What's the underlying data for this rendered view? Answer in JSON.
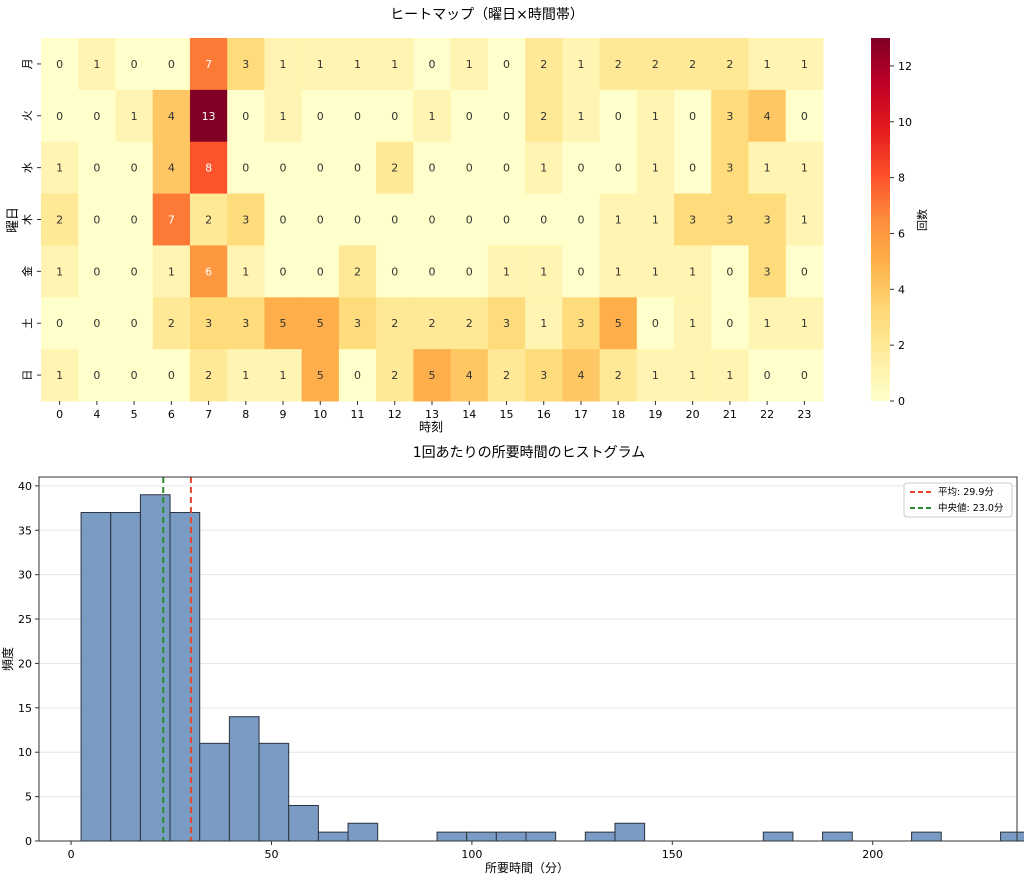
{
  "chart_data": [
    {
      "type": "heatmap",
      "title": "ヒートマップ（曜日×時間帯）",
      "xlabel": "時刻",
      "ylabel": "曜日",
      "x_categories": [
        "0",
        "4",
        "5",
        "6",
        "7",
        "8",
        "9",
        "10",
        "11",
        "12",
        "13",
        "14",
        "15",
        "16",
        "17",
        "18",
        "19",
        "20",
        "21",
        "22",
        "23"
      ],
      "y_categories": [
        "月",
        "火",
        "水",
        "木",
        "金",
        "土",
        "日"
      ],
      "values": [
        [
          0,
          1,
          0,
          0,
          7,
          3,
          1,
          1,
          1,
          1,
          0,
          1,
          0,
          2,
          1,
          2,
          2,
          2,
          2,
          1,
          1
        ],
        [
          0,
          0,
          1,
          4,
          13,
          0,
          1,
          0,
          0,
          0,
          1,
          0,
          0,
          2,
          1,
          0,
          1,
          0,
          3,
          4,
          0
        ],
        [
          1,
          0,
          0,
          4,
          8,
          0,
          0,
          0,
          0,
          2,
          0,
          0,
          0,
          1,
          0,
          0,
          1,
          0,
          3,
          1,
          1
        ],
        [
          2,
          0,
          0,
          7,
          2,
          3,
          0,
          0,
          0,
          0,
          0,
          0,
          0,
          0,
          0,
          1,
          1,
          3,
          3,
          3,
          1
        ],
        [
          1,
          0,
          0,
          1,
          6,
          1,
          0,
          0,
          2,
          0,
          0,
          0,
          1,
          1,
          0,
          1,
          1,
          1,
          0,
          3,
          0
        ],
        [
          0,
          0,
          0,
          2,
          3,
          3,
          5,
          5,
          3,
          2,
          2,
          2,
          3,
          1,
          3,
          5,
          0,
          1,
          0,
          1,
          1
        ],
        [
          1,
          0,
          0,
          0,
          2,
          1,
          1,
          5,
          0,
          2,
          5,
          4,
          2,
          3,
          4,
          2,
          1,
          1,
          1,
          0,
          0
        ]
      ],
      "colorbar": {
        "label": "回数",
        "range": [
          0,
          13
        ],
        "ticks": [
          "0",
          "2",
          "4",
          "6",
          "8",
          "10",
          "12"
        ]
      },
      "colormap": [
        "#ffffcc",
        "#ffeda0",
        "#fed976",
        "#feb24c",
        "#fd8d3c",
        "#fc4e2a",
        "#e31a1c",
        "#bd0026",
        "#800026"
      ]
    },
    {
      "type": "histogram",
      "title": "1回あたりの所要時間のヒストグラム",
      "xlabel": "所要時間（分）",
      "ylabel": "頻度",
      "bin_start": 2.5,
      "bin_width": 7.4,
      "counts": [
        37,
        37,
        39,
        37,
        11,
        14,
        11,
        4,
        1,
        2,
        0,
        0,
        1,
        1,
        1,
        1,
        0,
        1,
        2,
        0,
        0,
        0,
        0,
        1,
        0,
        1,
        0,
        0,
        1,
        0,
        0,
        1
      ],
      "xlim": [
        -8,
        236
      ],
      "ylim": [
        0,
        41
      ],
      "x_ticks": [
        "0",
        "50",
        "100",
        "150",
        "200"
      ],
      "y_ticks": [
        "0",
        "5",
        "10",
        "15",
        "20",
        "25",
        "30",
        "35",
        "40"
      ],
      "bar_color": "#7a9cc4",
      "edge_color": "#2b3340",
      "mean": {
        "value": 29.9,
        "label": "平均: 29.9分",
        "color": "#e8432e"
      },
      "median": {
        "value": 23.0,
        "label": "中央値: 23.0分",
        "color": "#2e8b2e"
      },
      "legend_position": "top-right"
    }
  ]
}
